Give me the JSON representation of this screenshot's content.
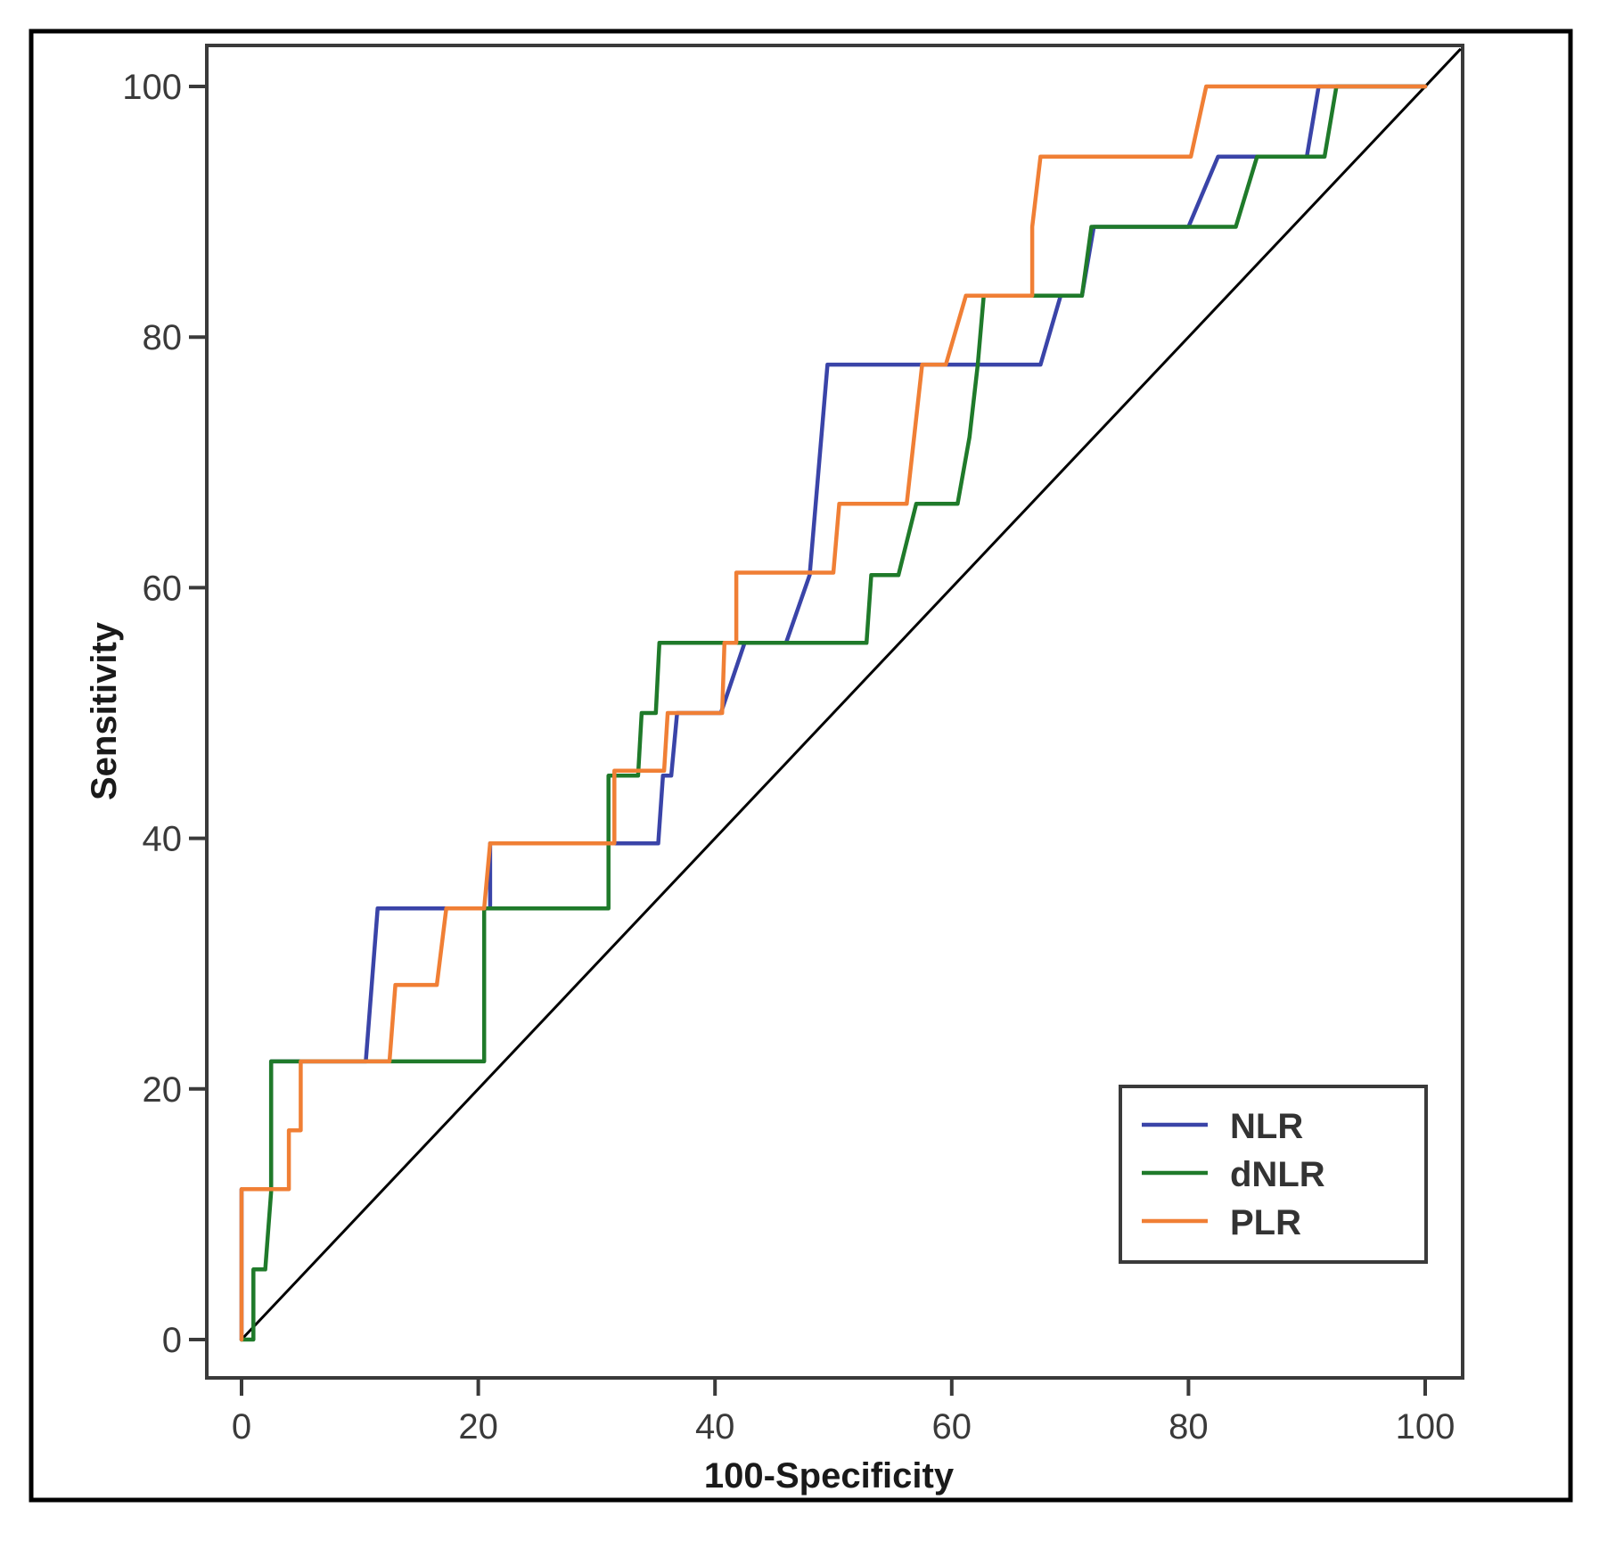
{
  "chart_data": {
    "type": "line",
    "title": "",
    "xlabel": "100-Specificity",
    "ylabel": "Sensitivity",
    "xlim": [
      -3,
      103
    ],
    "ylim": [
      -3,
      103
    ],
    "xticks": [
      0,
      20,
      40,
      60,
      80,
      100
    ],
    "yticks": [
      0,
      20,
      40,
      60,
      80,
      100
    ],
    "grid": false,
    "legend_position": "bottom-right",
    "reference_line": {
      "name": "reference",
      "points": [
        [
          0,
          0
        ],
        [
          103,
          103
        ]
      ],
      "color": "#000000"
    },
    "series": [
      {
        "name": "NLR",
        "color": "#3a44a8",
        "points": [
          [
            0,
            0
          ],
          [
            0,
            12
          ],
          [
            2.5,
            12
          ],
          [
            2.5,
            22.2
          ],
          [
            5,
            22.2
          ],
          [
            10.5,
            22.2
          ],
          [
            11.5,
            34.4
          ],
          [
            17,
            34.4
          ],
          [
            21,
            34.4
          ],
          [
            21,
            39.6
          ],
          [
            31,
            39.6
          ],
          [
            35.2,
            39.6
          ],
          [
            35.6,
            45
          ],
          [
            36.3,
            45
          ],
          [
            36.8,
            50
          ],
          [
            40.5,
            50
          ],
          [
            42.5,
            55.6
          ],
          [
            46,
            55.6
          ],
          [
            48,
            61
          ],
          [
            49.5,
            77.8
          ],
          [
            67.5,
            77.8
          ],
          [
            69.2,
            83.3
          ],
          [
            71,
            83.3
          ],
          [
            72,
            88.8
          ],
          [
            80,
            88.8
          ],
          [
            82.5,
            94.4
          ],
          [
            90,
            94.4
          ],
          [
            91,
            100
          ],
          [
            100,
            100
          ]
        ]
      },
      {
        "name": "dNLR",
        "color": "#1f7a2a",
        "points": [
          [
            0,
            0
          ],
          [
            1,
            0
          ],
          [
            1,
            5.6
          ],
          [
            2,
            5.6
          ],
          [
            2.5,
            11.8
          ],
          [
            2.5,
            22.2
          ],
          [
            5,
            22.2
          ],
          [
            20.5,
            22.2
          ],
          [
            20.5,
            34.4
          ],
          [
            31,
            34.4
          ],
          [
            31,
            45
          ],
          [
            33.5,
            45
          ],
          [
            33.8,
            50
          ],
          [
            35,
            50
          ],
          [
            35.3,
            55.6
          ],
          [
            52.8,
            55.6
          ],
          [
            53.2,
            61
          ],
          [
            55.5,
            61
          ],
          [
            57,
            66.7
          ],
          [
            60.5,
            66.7
          ],
          [
            61.5,
            72
          ],
          [
            62.2,
            77.8
          ],
          [
            62.7,
            83.3
          ],
          [
            71,
            83.3
          ],
          [
            71.8,
            88.8
          ],
          [
            84,
            88.8
          ],
          [
            85.8,
            94.4
          ],
          [
            91.5,
            94.4
          ],
          [
            92.5,
            100
          ],
          [
            100,
            100
          ]
        ]
      },
      {
        "name": "PLR",
        "color": "#f07f35",
        "points": [
          [
            0,
            0
          ],
          [
            0,
            12
          ],
          [
            4,
            12
          ],
          [
            4,
            16.7
          ],
          [
            5,
            16.7
          ],
          [
            5,
            22.2
          ],
          [
            12.5,
            22.2
          ],
          [
            13,
            28.3
          ],
          [
            16.5,
            28.3
          ],
          [
            17.3,
            34.4
          ],
          [
            20.5,
            34.4
          ],
          [
            21,
            39.6
          ],
          [
            31.5,
            39.6
          ],
          [
            31.5,
            45.4
          ],
          [
            35.7,
            45.4
          ],
          [
            36,
            50
          ],
          [
            40.6,
            50
          ],
          [
            40.8,
            55.6
          ],
          [
            41.8,
            55.6
          ],
          [
            41.8,
            61.2
          ],
          [
            50,
            61.2
          ],
          [
            50.5,
            66.7
          ],
          [
            56.2,
            66.7
          ],
          [
            57.5,
            77.8
          ],
          [
            59.5,
            77.8
          ],
          [
            61.2,
            83.3
          ],
          [
            66.8,
            83.3
          ],
          [
            66.8,
            88.8
          ],
          [
            67.5,
            94.4
          ],
          [
            80.2,
            94.4
          ],
          [
            81.5,
            100
          ],
          [
            100,
            100
          ]
        ]
      }
    ]
  }
}
